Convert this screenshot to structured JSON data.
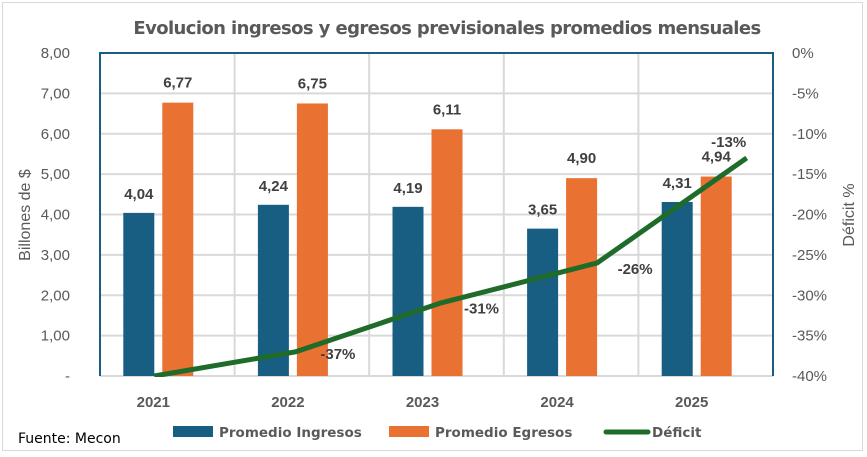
{
  "chart_data": {
    "type": "bar",
    "title": "Evolucion ingresos y egresos previsionales promedios mensuales",
    "categories": [
      "2021",
      "2022",
      "2023",
      "2024",
      "2025"
    ],
    "series": [
      {
        "name": "Promedio Ingresos",
        "type": "bar",
        "axis": "left",
        "color": "#175e82",
        "values": [
          4.04,
          4.24,
          4.19,
          3.65,
          4.31
        ],
        "labels": [
          "4,04",
          "4,24",
          "4,19",
          "3,65",
          "4,31"
        ]
      },
      {
        "name": "Promedio Egresos",
        "type": "bar",
        "axis": "left",
        "color": "#e97132",
        "values": [
          6.77,
          6.75,
          6.11,
          4.9,
          4.94
        ],
        "labels": [
          "6,77",
          "6,75",
          "6,11",
          "4,90",
          "4,94"
        ]
      },
      {
        "name": "Déficit",
        "type": "line",
        "axis": "right",
        "color": "#1f6b2a",
        "values": [
          -40,
          -37,
          -31,
          -26,
          -13
        ],
        "labels": [
          "",
          "-37%",
          "-31%",
          "-26%",
          "-13%"
        ]
      }
    ],
    "ylabel": "Billones de $",
    "ylim": [
      0,
      8
    ],
    "yticks": [
      "-",
      "1,00",
      "2,00",
      "3,00",
      "4,00",
      "5,00",
      "6,00",
      "7,00",
      "8,00"
    ],
    "y2label": "Déficit %",
    "y2lim": [
      -40,
      0
    ],
    "y2ticks": [
      "-40%",
      "-35%",
      "-30%",
      "-25%",
      "-20%",
      "-15%",
      "-10%",
      "-5%",
      "0%"
    ],
    "grid": true,
    "legend": "bottom"
  },
  "source": "Fuente: Mecon"
}
